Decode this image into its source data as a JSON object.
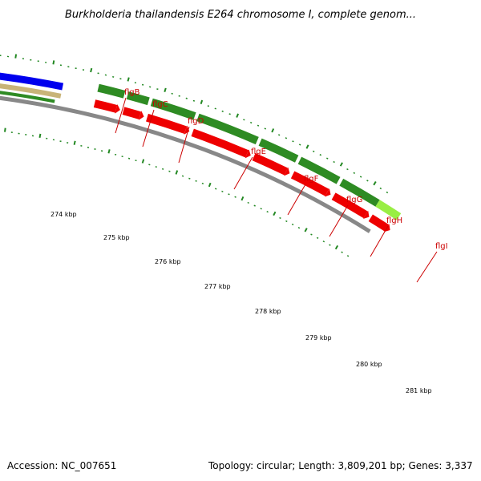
{
  "header": {
    "title": "Burkholderia thailandensis E264 chromosome I, complete genom..."
  },
  "footer": {
    "accession": "Accession: NC_007651",
    "summary": "Topology: circular; Length: 3,809,201 bp; Genes: 3,337"
  },
  "colors": {
    "backbone": "#888888",
    "cds_forward": "#2e8b23",
    "cds_reverse": "#ee0000",
    "other_blue": "#0000ee",
    "other_tan": "#c8b478",
    "other_lightgreen": "#99ee44",
    "label_red": "#cc0000",
    "tick_green": "#228822"
  },
  "gene_labels": [
    "flgB",
    "flgC",
    "flgD",
    "flgE",
    "flgF",
    "flgG",
    "flgH",
    "flgI"
  ],
  "scale_labels": [
    "274 kbp",
    "275 kbp",
    "276 kbp",
    "277 kbp",
    "278 kbp",
    "279 kbp",
    "280 kbp",
    "281 kbp"
  ]
}
